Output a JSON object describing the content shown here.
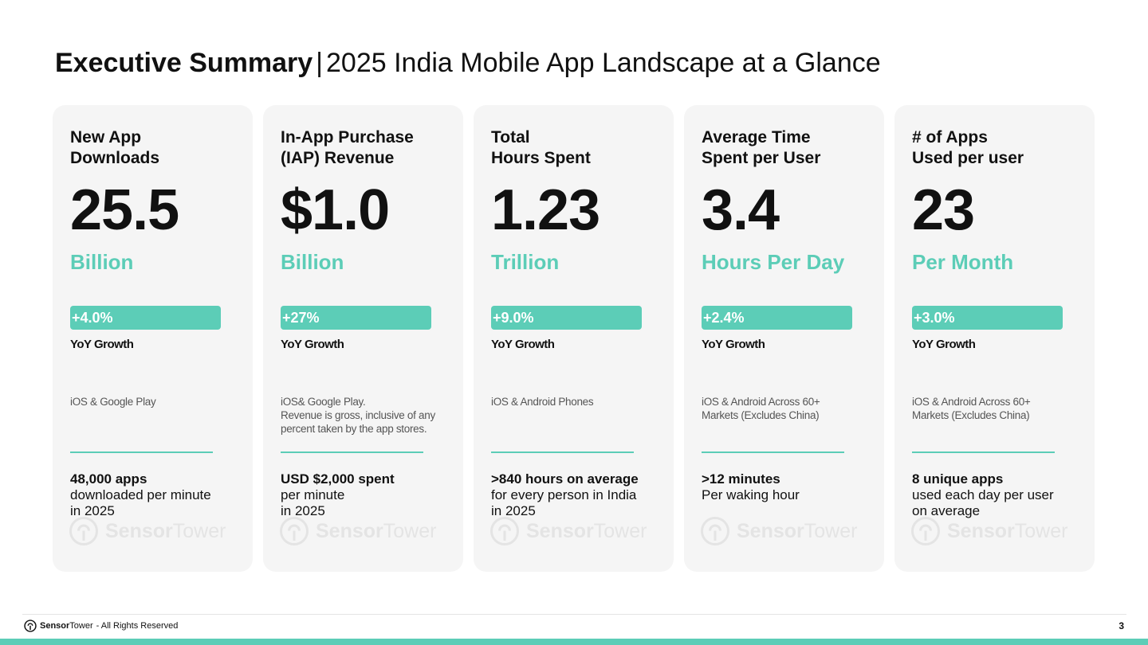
{
  "title": {
    "bold": "Executive Summary",
    "separator": "|",
    "rest": "2025 India Mobile App Landscape at a Glance"
  },
  "cards": [
    {
      "title": "New App\nDownloads",
      "value": "25.5",
      "unit": "Billion",
      "growth": "+4.0%",
      "growth_label": "YoY Growth",
      "source": "iOS & Google Play",
      "fact_bold": "48,000 apps",
      "fact_rest": "downloaded per minute\nin 2025",
      "logo_b": "Sensor",
      "logo_r": "Tower"
    },
    {
      "title": "In-App Purchase\n(IAP) Revenue",
      "value": "$1.0",
      "unit": "Billion",
      "growth": "+27%",
      "growth_label": "YoY Growth",
      "source": "iOS& Google Play.\nRevenue is gross, inclusive of any\npercent taken by the app stores.",
      "fact_bold": "USD $2,000 spent",
      "fact_rest": "per minute\nin 2025",
      "logo_b": "Sensor",
      "logo_r": "Tower"
    },
    {
      "title": "Total\nHours Spent",
      "value": "1.23",
      "unit": "Trillion",
      "growth": "+9.0%",
      "growth_label": "YoY Growth",
      "source": "iOS & Android Phones",
      "fact_bold": ">840 hours on average",
      "fact_rest": "for every person in India\nin 2025",
      "logo_b": "Sensor",
      "logo_r": "Tower"
    },
    {
      "title": "Average Time\nSpent per User",
      "value": "3.4",
      "unit": "Hours Per Day",
      "growth": "+2.4%",
      "growth_label": "YoY Growth",
      "source": "iOS & Android Across 60+\nMarkets (Excludes China)",
      "fact_bold": ">12 minutes",
      "fact_rest": "Per waking hour",
      "logo_b": "Sensor",
      "logo_r": "Tower"
    },
    {
      "title": "# of Apps\nUsed per user",
      "value": "23",
      "unit": "Per Month",
      "growth": "+3.0%",
      "growth_label": "YoY Growth",
      "source": "iOS & Android Across 60+\nMarkets (Excludes China)",
      "fact_bold": "8 unique apps",
      "fact_rest": "used each day per user\non average",
      "logo_b": "Sensor",
      "logo_r": "Tower"
    }
  ],
  "footer": {
    "brand_b": "Sensor",
    "brand_r": "Tower",
    "rights": "- All Rights Reserved",
    "page_number": "3"
  },
  "colors": {
    "accent": "#5ccdb7",
    "card_bg": "#f5f5f5"
  },
  "icons": {
    "logo": "sensor-tower-logo-icon"
  }
}
